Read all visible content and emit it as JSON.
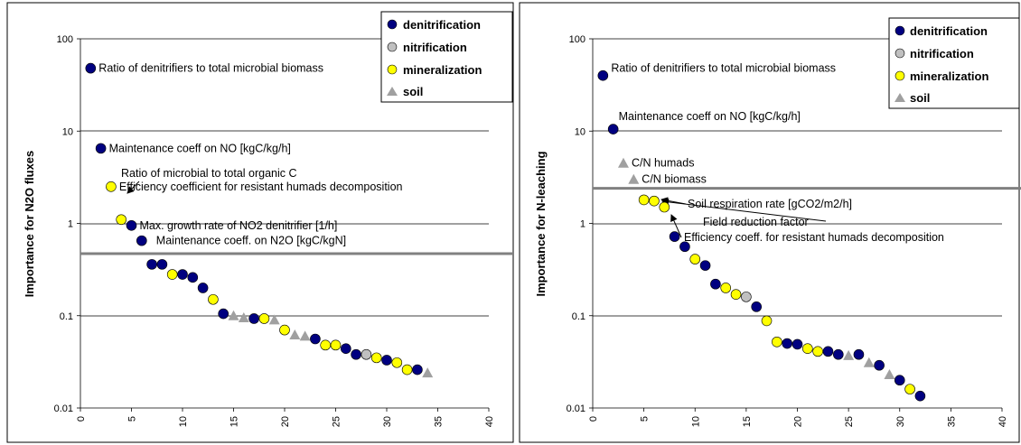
{
  "chart_data": [
    {
      "type": "scatter",
      "ylabel": "Importance for N2O fluxes",
      "xlim": [
        0,
        40
      ],
      "ylim": [
        0.01,
        100
      ],
      "yscale": "log",
      "xticks": [
        0,
        5,
        10,
        15,
        20,
        25,
        30,
        35,
        40
      ],
      "yticks": [
        {
          "value": 0.01,
          "label": "0.01"
        },
        {
          "value": 0.1,
          "label": "0.1"
        },
        {
          "value": 1,
          "label": "1"
        },
        {
          "value": 10,
          "label": "10"
        },
        {
          "value": 100,
          "label": "100"
        }
      ],
      "grid": "horizontal",
      "threshold": 0.47,
      "legend_position": "top-right",
      "legend": [
        {
          "name": "denitrification",
          "marker": "circle",
          "color": "#000080"
        },
        {
          "name": "nitrification",
          "marker": "circle",
          "color": "#C0C0C0"
        },
        {
          "name": "mineralization",
          "marker": "circle",
          "color": "#FFFF00"
        },
        {
          "name": "soil",
          "marker": "triangle",
          "color": "#A0A0A0"
        }
      ],
      "points": [
        {
          "x": 1,
          "y": 48,
          "group": "denitrification"
        },
        {
          "x": 2,
          "y": 6.5,
          "group": "denitrification"
        },
        {
          "x": 3,
          "y": 2.5,
          "group": "mineralization"
        },
        {
          "x": 4,
          "y": 1.1,
          "group": "mineralization"
        },
        {
          "x": 5,
          "y": 0.95,
          "group": "denitrification"
        },
        {
          "x": 6,
          "y": 0.65,
          "group": "denitrification"
        },
        {
          "x": 7,
          "y": 0.36,
          "group": "denitrification"
        },
        {
          "x": 8,
          "y": 0.36,
          "group": "denitrification"
        },
        {
          "x": 9,
          "y": 0.28,
          "group": "mineralization"
        },
        {
          "x": 10,
          "y": 0.28,
          "group": "denitrification"
        },
        {
          "x": 11,
          "y": 0.26,
          "group": "denitrification"
        },
        {
          "x": 12,
          "y": 0.2,
          "group": "denitrification"
        },
        {
          "x": 13,
          "y": 0.15,
          "group": "mineralization"
        },
        {
          "x": 14,
          "y": 0.105,
          "group": "denitrification"
        },
        {
          "x": 15,
          "y": 0.1,
          "group": "soil"
        },
        {
          "x": 16,
          "y": 0.095,
          "group": "soil"
        },
        {
          "x": 17,
          "y": 0.093,
          "group": "denitrification"
        },
        {
          "x": 18,
          "y": 0.093,
          "group": "mineralization"
        },
        {
          "x": 19,
          "y": 0.09,
          "group": "soil"
        },
        {
          "x": 20,
          "y": 0.07,
          "group": "mineralization"
        },
        {
          "x": 21,
          "y": 0.062,
          "group": "soil"
        },
        {
          "x": 22,
          "y": 0.06,
          "group": "soil"
        },
        {
          "x": 23,
          "y": 0.056,
          "group": "denitrification"
        },
        {
          "x": 24,
          "y": 0.048,
          "group": "mineralization"
        },
        {
          "x": 25,
          "y": 0.048,
          "group": "mineralization"
        },
        {
          "x": 26,
          "y": 0.044,
          "group": "denitrification"
        },
        {
          "x": 27,
          "y": 0.038,
          "group": "denitrification"
        },
        {
          "x": 28,
          "y": 0.038,
          "group": "nitrification"
        },
        {
          "x": 29,
          "y": 0.035,
          "group": "mineralization"
        },
        {
          "x": 30,
          "y": 0.033,
          "group": "denitrification"
        },
        {
          "x": 31,
          "y": 0.031,
          "group": "mineralization"
        },
        {
          "x": 32,
          "y": 0.026,
          "group": "mineralization"
        },
        {
          "x": 33,
          "y": 0.026,
          "group": "denitrification"
        },
        {
          "x": 34,
          "y": 0.024,
          "group": "soil"
        }
      ],
      "annotations": [
        {
          "text": "Ratio of denitrifiers to total microbial biomass",
          "x": 1,
          "y": 48,
          "arrow": false
        },
        {
          "text": "Maintenance coeff on NO [kgC/kg/h]",
          "x": 2,
          "y": 6.5,
          "arrow": false
        },
        {
          "text": "Efficiency coefficient for resistant humads decomposition",
          "x": 3,
          "y": 2.5,
          "arrow": false
        },
        {
          "text": "Ratio of microbial to total organic C",
          "x": 4,
          "y": 1.1,
          "arrow": true
        },
        {
          "text": "Max. growth rate of NO2 denitrifier [1/h]",
          "x": 5,
          "y": 0.95,
          "arrow": false
        },
        {
          "text": "Maintenance coeff. on N2O [kgC/kgN]",
          "x": 6,
          "y": 0.65,
          "arrow": false
        }
      ]
    },
    {
      "type": "scatter",
      "ylabel": "Importance for N-leaching",
      "xlim": [
        0,
        40
      ],
      "ylim": [
        0.01,
        100
      ],
      "yscale": "log",
      "xticks": [
        0,
        5,
        10,
        15,
        20,
        25,
        30,
        35,
        40
      ],
      "yticks": [
        {
          "value": 0.01,
          "label": "0.01"
        },
        {
          "value": 0.1,
          "label": "0.1"
        },
        {
          "value": 1,
          "label": "1"
        },
        {
          "value": 10,
          "label": "10"
        },
        {
          "value": 100,
          "label": "100"
        }
      ],
      "grid": "horizontal",
      "threshold": 2.4,
      "legend_position": "top-right",
      "legend": [
        {
          "name": "denitrification",
          "marker": "circle",
          "color": "#000080"
        },
        {
          "name": "nitrification",
          "marker": "circle",
          "color": "#C0C0C0"
        },
        {
          "name": "mineralization",
          "marker": "circle",
          "color": "#FFFF00"
        },
        {
          "name": "soil",
          "marker": "triangle",
          "color": "#A0A0A0"
        }
      ],
      "points": [
        {
          "x": 1,
          "y": 40,
          "group": "denitrification"
        },
        {
          "x": 2,
          "y": 10.5,
          "group": "denitrification"
        },
        {
          "x": 3,
          "y": 4.5,
          "group": "soil"
        },
        {
          "x": 4,
          "y": 3.0,
          "group": "soil"
        },
        {
          "x": 5,
          "y": 1.8,
          "group": "mineralization"
        },
        {
          "x": 6,
          "y": 1.75,
          "group": "mineralization"
        },
        {
          "x": 7,
          "y": 1.5,
          "group": "mineralization"
        },
        {
          "x": 8,
          "y": 0.72,
          "group": "denitrification"
        },
        {
          "x": 9,
          "y": 0.56,
          "group": "denitrification"
        },
        {
          "x": 10,
          "y": 0.41,
          "group": "mineralization"
        },
        {
          "x": 11,
          "y": 0.35,
          "group": "denitrification"
        },
        {
          "x": 12,
          "y": 0.22,
          "group": "denitrification"
        },
        {
          "x": 13,
          "y": 0.2,
          "group": "mineralization"
        },
        {
          "x": 14,
          "y": 0.17,
          "group": "mineralization"
        },
        {
          "x": 15,
          "y": 0.16,
          "group": "nitrification"
        },
        {
          "x": 16,
          "y": 0.125,
          "group": "denitrification"
        },
        {
          "x": 17,
          "y": 0.088,
          "group": "mineralization"
        },
        {
          "x": 18,
          "y": 0.052,
          "group": "mineralization"
        },
        {
          "x": 19,
          "y": 0.05,
          "group": "denitrification"
        },
        {
          "x": 20,
          "y": 0.049,
          "group": "denitrification"
        },
        {
          "x": 21,
          "y": 0.044,
          "group": "mineralization"
        },
        {
          "x": 22,
          "y": 0.041,
          "group": "mineralization"
        },
        {
          "x": 23,
          "y": 0.041,
          "group": "denitrification"
        },
        {
          "x": 24,
          "y": 0.038,
          "group": "denitrification"
        },
        {
          "x": 25,
          "y": 0.037,
          "group": "soil"
        },
        {
          "x": 26,
          "y": 0.038,
          "group": "denitrification"
        },
        {
          "x": 27,
          "y": 0.031,
          "group": "soil"
        },
        {
          "x": 28,
          "y": 0.029,
          "group": "denitrification"
        },
        {
          "x": 29,
          "y": 0.023,
          "group": "soil"
        },
        {
          "x": 30,
          "y": 0.02,
          "group": "denitrification"
        },
        {
          "x": 31,
          "y": 0.016,
          "group": "mineralization"
        },
        {
          "x": 32,
          "y": 0.0135,
          "group": "denitrification"
        }
      ],
      "annotations": [
        {
          "text": "Ratio of denitrifiers to total microbial biomass",
          "x": 1,
          "y": 40,
          "arrow": false
        },
        {
          "text": "Maintenance coeff on NO [kgC/kg/h]",
          "x": 2,
          "y": 10.5,
          "arrow": false
        },
        {
          "text": "C/N humads",
          "x": 3,
          "y": 4.5,
          "arrow": false
        },
        {
          "text": "C/N biomass",
          "x": 4,
          "y": 3.0,
          "arrow": false
        },
        {
          "text": "Soil respiration rate [gCO2/m2/h]",
          "x": 6,
          "y": 1.75,
          "arrow": true
        },
        {
          "text": "Field reduction factor",
          "x": 7,
          "y": 1.5,
          "arrow": true
        },
        {
          "text": "Efficiency coeff. for resistant humads decomposition",
          "x": 7,
          "y": 1.5,
          "arrow": true
        }
      ]
    }
  ]
}
